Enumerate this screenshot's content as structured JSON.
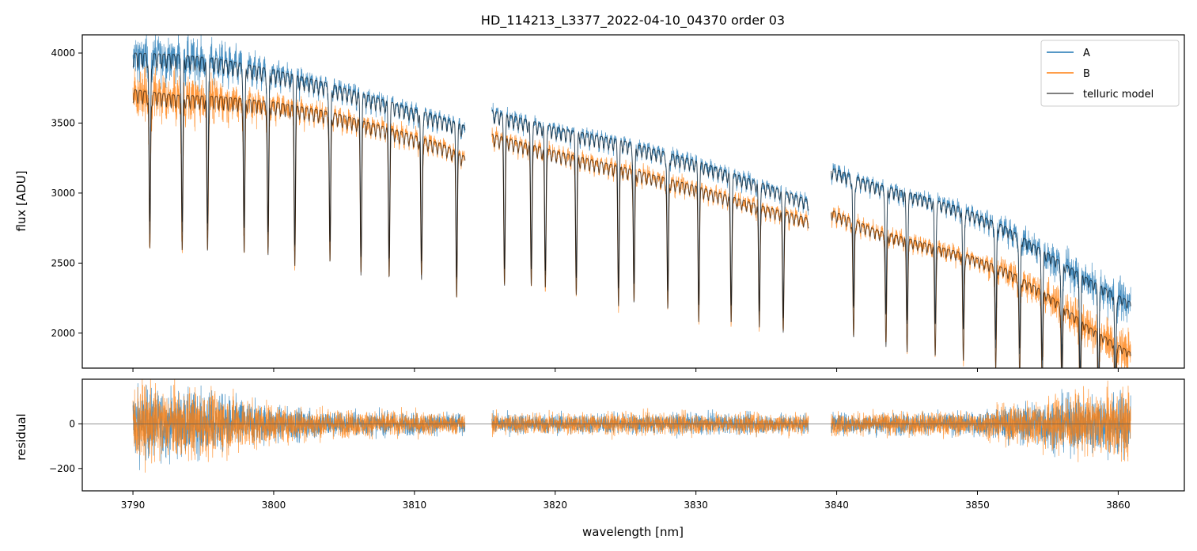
{
  "chart_data": {
    "type": "line",
    "title": "HD_114213_L3377_2022-04-10_04370  order 03",
    "xlabel": "wavelength [nm]",
    "x_range": [
      3786.4,
      3864.7
    ],
    "x_ticks": [
      3790,
      3800,
      3810,
      3820,
      3830,
      3840,
      3850,
      3860
    ],
    "x_tick_labels": [
      "3790",
      "3800",
      "3810",
      "3820",
      "3830",
      "3840",
      "3850",
      "3860"
    ],
    "colors": {
      "A": "#1f77b4",
      "B": "#ff7f0e",
      "telluric": "#000000"
    },
    "grid": false,
    "legend_position": "top-right",
    "legend": [
      "A",
      "B",
      "telluric model"
    ],
    "panels": [
      {
        "name": "flux",
        "ylabel": "flux [ADU]",
        "ylim": [
          1750,
          4130
        ],
        "y_ticks": [
          2000,
          2500,
          3000,
          3500,
          4000
        ],
        "y_tick_labels": [
          "2000",
          "2500",
          "3000",
          "3500",
          "4000"
        ],
        "segments": [
          {
            "x_range": [
              3790.0,
              3813.6
            ]
          },
          {
            "x_range": [
              3815.5,
              3838.0
            ]
          },
          {
            "x_range": [
              3839.6,
              3860.9
            ]
          }
        ],
        "series": [
          {
            "name": "A",
            "color": "#1f77b4",
            "x": [
              3790.0,
              3793.0,
              3796.0,
              3800.0,
              3804.0,
              3808.0,
              3812.0,
              3813.6,
              3815.5,
              3820.0,
              3825.0,
              3830.0,
              3835.0,
              3838.0,
              3839.6,
              3843.0,
              3846.0,
              3849.0,
              3852.0,
              3855.0,
              3858.0,
              3860.9
            ],
            "y": [
              4000,
              3990,
              3960,
              3880,
              3780,
              3660,
              3540,
              3480,
              3590,
              3470,
              3370,
              3230,
              3060,
              2950,
              3180,
              3060,
              2980,
              2890,
              2760,
              2570,
              2380,
              2220
            ]
          },
          {
            "name": "B",
            "color": "#ff7f0e",
            "x": [
              3790.0,
              3793.0,
              3796.0,
              3800.0,
              3804.0,
              3808.0,
              3812.0,
              3813.6,
              3815.5,
              3820.0,
              3825.0,
              3830.0,
              3835.0,
              3838.0,
              3839.6,
              3843.0,
              3846.0,
              3849.0,
              3852.0,
              3855.0,
              3858.0,
              3860.9
            ],
            "y": [
              3740,
              3700,
              3690,
              3650,
              3580,
              3470,
              3350,
              3260,
              3420,
              3300,
              3180,
              3050,
              2900,
              2820,
              2880,
              2730,
              2650,
              2570,
              2460,
              2280,
              2040,
              1860
            ]
          },
          {
            "name": "telluric model",
            "color": "#000000",
            "line_opacity": 0.6,
            "x": [
              3790.0,
              3793.0,
              3796.0,
              3800.0,
              3804.0,
              3808.0,
              3812.0,
              3813.6,
              3815.5,
              3820.0,
              3825.0,
              3830.0,
              3835.0,
              3838.0,
              3839.6,
              3843.0,
              3846.0,
              3849.0,
              3852.0,
              3855.0,
              3858.0,
              3860.9
            ],
            "y_models_series": [
              "A",
              "B"
            ]
          }
        ],
        "absorption_lines_nm": [
          3791.2,
          3793.5,
          3795.3,
          3797.9,
          3799.6,
          3801.5,
          3804.0,
          3806.2,
          3808.2,
          3810.5,
          3813.0,
          3816.4,
          3818.3,
          3819.3,
          3821.5,
          3824.5,
          3825.6,
          3828.0,
          3830.2,
          3832.5,
          3834.5,
          3836.2,
          3841.2,
          3843.5,
          3845.0,
          3847.0,
          3849.0,
          3851.3,
          3853.0,
          3854.6,
          3856.0,
          3857.3,
          3858.6,
          3859.8
        ]
      },
      {
        "name": "residual",
        "ylabel": "residual",
        "ylim": [
          -300,
          200
        ],
        "y_ticks": [
          -200,
          0
        ],
        "y_tick_labels": [
          "−200",
          "0"
        ],
        "reference_line": 0,
        "series": [
          {
            "name": "A",
            "color": "#1f77b4",
            "noise_envelope": {
              "x": [
                3790,
                3792,
                3796,
                3800,
                3805,
                3813.6,
                3815.5,
                3838,
                3839.6,
                3850,
                3855,
                3860.9
              ],
              "amplitude": [
                300,
                260,
                240,
                140,
                100,
                80,
                80,
                80,
                80,
                90,
                200,
                260
              ]
            }
          },
          {
            "name": "B",
            "color": "#ff7f0e",
            "noise_envelope": {
              "x": [
                3790,
                3792,
                3796,
                3800,
                3805,
                3813.6,
                3815.5,
                3838,
                3839.6,
                3850,
                3855,
                3860.9
              ],
              "amplitude": [
                320,
                280,
                260,
                150,
                100,
                80,
                80,
                80,
                80,
                90,
                220,
                270
              ]
            }
          }
        ]
      }
    ]
  }
}
